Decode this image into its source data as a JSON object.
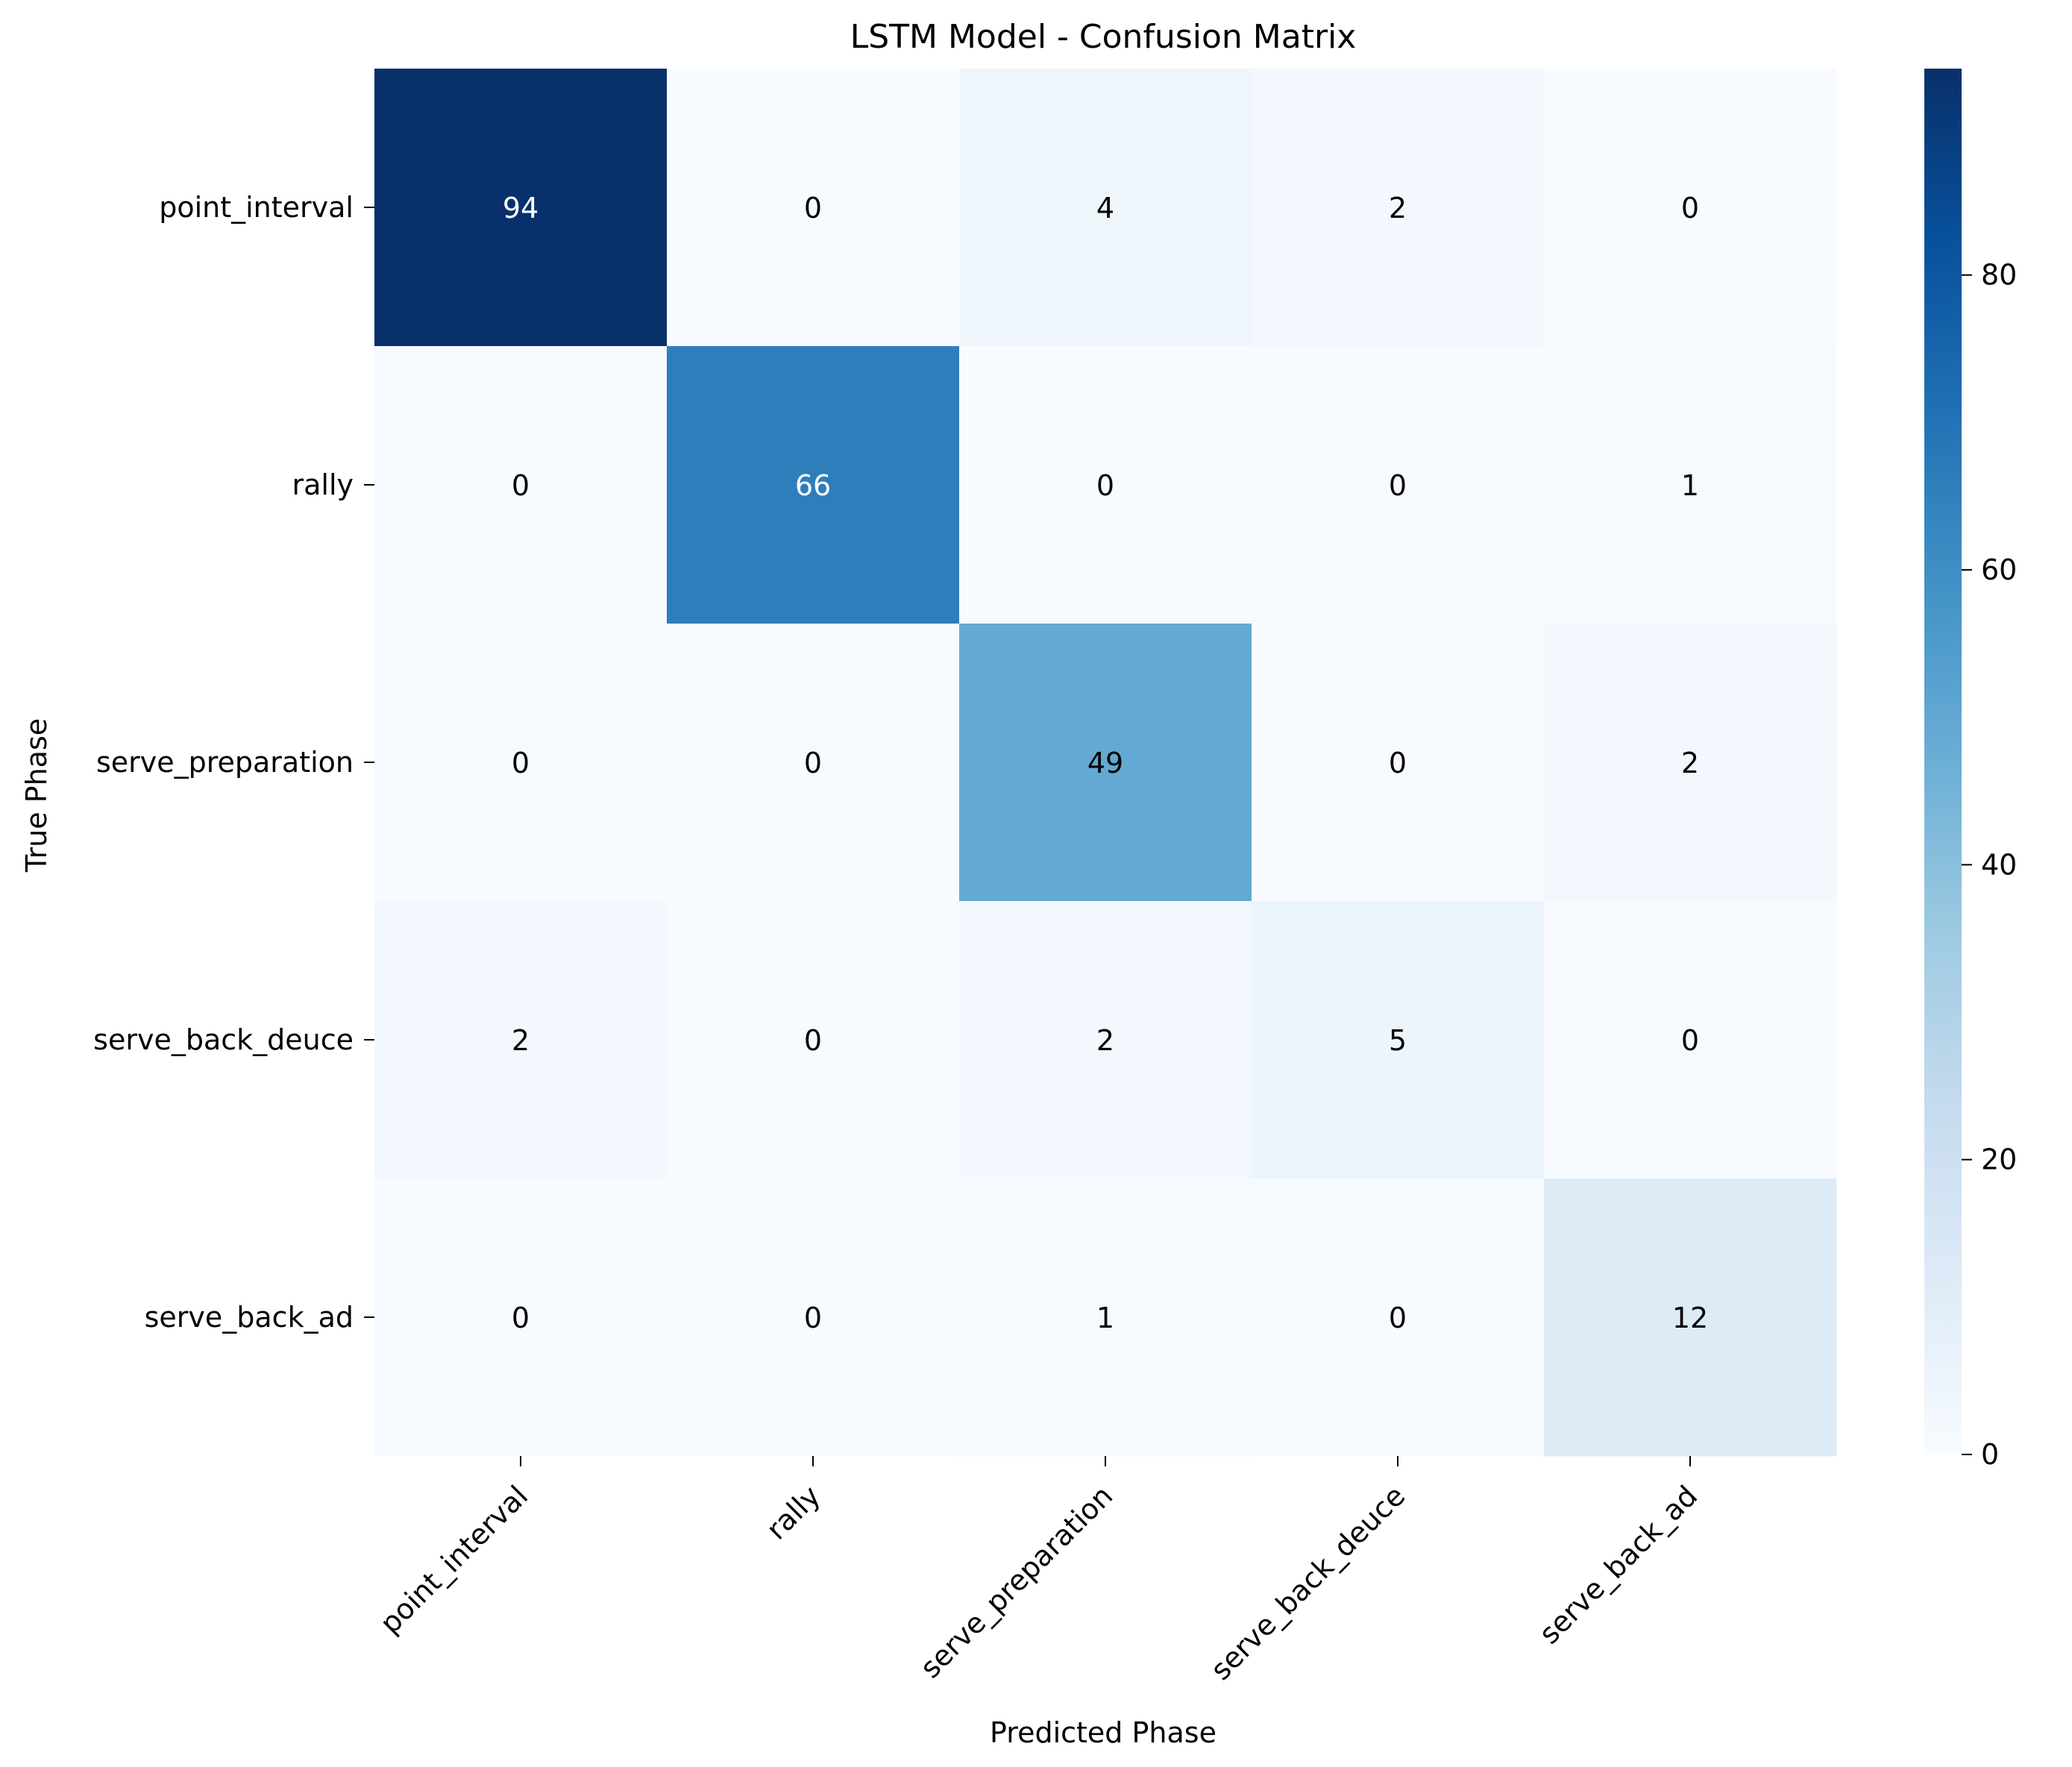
{
  "chart_data": {
    "type": "heatmap",
    "title": "LSTM Model - Confusion Matrix",
    "xlabel": "Predicted Phase",
    "ylabel": "True Phase",
    "x_categories": [
      "point_interval",
      "rally",
      "serve_preparation",
      "serve_back_deuce",
      "serve_back_ad"
    ],
    "y_categories": [
      "point_interval",
      "rally",
      "serve_preparation",
      "serve_back_deuce",
      "serve_back_ad"
    ],
    "values": [
      [
        94,
        0,
        4,
        2,
        0
      ],
      [
        0,
        66,
        0,
        0,
        1
      ],
      [
        0,
        0,
        49,
        0,
        2
      ],
      [
        2,
        0,
        2,
        5,
        0
      ],
      [
        0,
        0,
        1,
        0,
        12
      ]
    ],
    "annotations": [
      [
        "94",
        "0",
        "4",
        "2",
        "0"
      ],
      [
        "0",
        "66",
        "0",
        "0",
        "1"
      ],
      [
        "0",
        "0",
        "49",
        "0",
        "2"
      ],
      [
        "2",
        "0",
        "2",
        "5",
        "0"
      ],
      [
        "0",
        "0",
        "1",
        "0",
        "12"
      ]
    ],
    "colormap": "Blues",
    "colormap_stops": [
      "#f7fbff",
      "#deebf7",
      "#c6dbef",
      "#9ecae1",
      "#6baed6",
      "#4292c6",
      "#2171b5",
      "#08519c",
      "#08306b"
    ],
    "value_range": [
      0,
      94
    ],
    "colorbar_ticks": [
      0,
      20,
      40,
      60,
      80
    ],
    "colorbar_tick_labels": [
      "0",
      "20",
      "40",
      "60",
      "80"
    ],
    "annotation_dark_text_color": "#000000",
    "annotation_light_text_color": "#ffffff"
  }
}
